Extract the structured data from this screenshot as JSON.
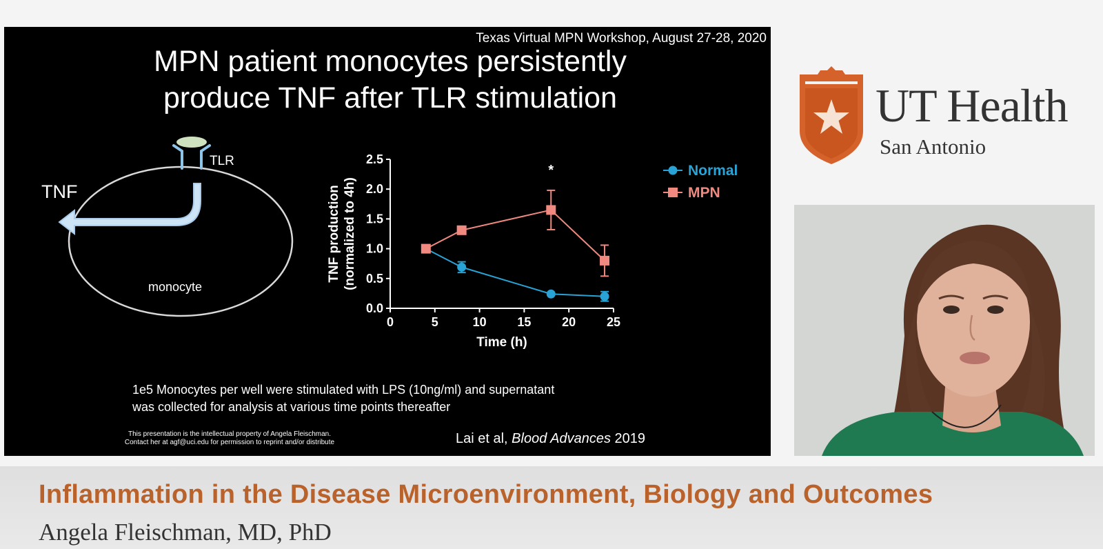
{
  "slide": {
    "workshop": "Texas Virtual MPN Workshop, August 27-28, 2020",
    "title_line1": "MPN patient monocytes persistently",
    "title_line2": "produce TNF after TLR stimulation",
    "diagram": {
      "tlr_label": "TLR",
      "tnf_label": "TNF",
      "cell_label": "monocyte"
    },
    "caption_line1": "1e5 Monocytes  per well were stimulated with LPS (10ng/ml) and supernatant",
    "caption_line2": "was collected for analysis at various time points thereafter",
    "ip_line1": "This presentation is the intellectual property of Angela Fleischman.",
    "ip_line2": "Contact her at agf@uci.edu for permission to reprint and/or distribute",
    "citation_authors": "Lai et al, ",
    "citation_journal": "Blood Advances",
    "citation_year": " 2019"
  },
  "chart_data": {
    "type": "line",
    "xlabel": "Time (h)",
    "ylabel_line1": "TNF production",
    "ylabel_line2": "(normalized to 4h)",
    "xlim": [
      0,
      25
    ],
    "ylim": [
      0,
      2.5
    ],
    "xticks": [
      0,
      5,
      10,
      15,
      20,
      25
    ],
    "yticks": [
      "0.0",
      "0.5",
      "1.0",
      "1.5",
      "2.0",
      "2.5"
    ],
    "grid": false,
    "legend_position": "top-right",
    "annotation": "*",
    "annotation_x": 18,
    "series": [
      {
        "name": "Normal",
        "color": "#29a3d6",
        "marker": "circle",
        "x": [
          4,
          8,
          18,
          24
        ],
        "y": [
          1.0,
          0.69,
          0.24,
          0.2
        ],
        "err": [
          0.03,
          0.09,
          0.02,
          0.08
        ]
      },
      {
        "name": "MPN",
        "color": "#f08a80",
        "marker": "square",
        "x": [
          4,
          8,
          18,
          24
        ],
        "y": [
          1.0,
          1.31,
          1.65,
          0.8
        ],
        "err": [
          0.02,
          0.05,
          0.33,
          0.26
        ]
      }
    ]
  },
  "logo": {
    "line1": "UT Health",
    "line2": "San Antonio",
    "brand_color": "#d4622a"
  },
  "lower_third": {
    "title": "Inflammation in the Disease Microenvironment, Biology and Outcomes",
    "speaker": "Angela Fleischman, MD, PhD",
    "title_color": "#b9622b"
  }
}
